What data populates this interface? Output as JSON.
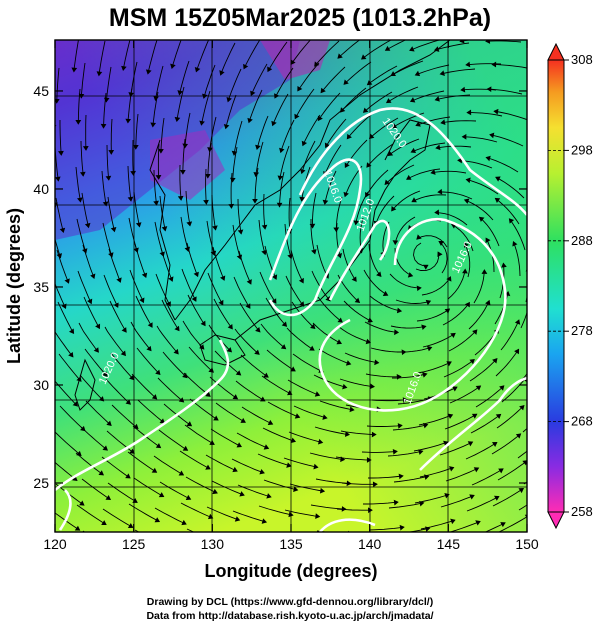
{
  "title": "MSM 15Z05Mar2025 (1013.2hPa)",
  "x_axis": {
    "label": "Longitude (degrees)",
    "range": [
      120,
      150
    ],
    "ticks": [
      "120",
      "125",
      "130",
      "135",
      "140",
      "145",
      "150"
    ]
  },
  "y_axis": {
    "label": "Latitude  (degrees)",
    "range": [
      22.5,
      47.6
    ],
    "ticks": [
      "25",
      "30",
      "35",
      "40",
      "45"
    ]
  },
  "colorbar": {
    "range": [
      258,
      308
    ],
    "ticks": [
      "258",
      "268",
      "278",
      "288",
      "298",
      "308"
    ]
  },
  "isobar_labels": [
    "1020.0",
    "1016.0",
    "1012.0",
    "1020.0",
    "1016.0",
    "1016.0"
  ],
  "credits": {
    "line1": "Drawing by DCL (https://www.gfd-dennou.org/library/dcl/)",
    "line2": "Data from http://database.rish.kyoto-u.ac.jp/arch/jmadata/"
  }
}
